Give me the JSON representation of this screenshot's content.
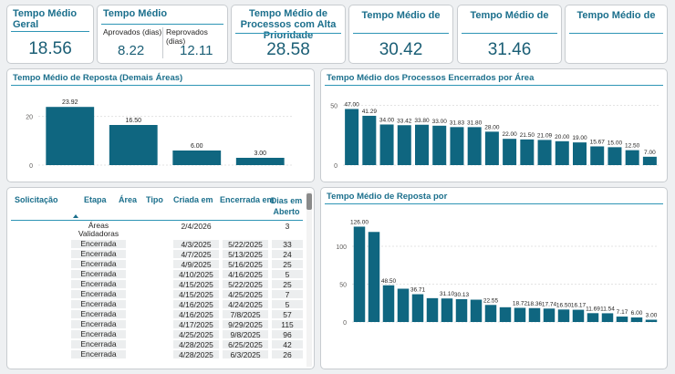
{
  "kpis": {
    "geral": {
      "title": "Tempo Médio Geral",
      "value": "18.56"
    },
    "medio": {
      "title": "Tempo Médio",
      "aprovados_label": "Aprovados (dias)",
      "aprovados_value": "8.22",
      "reprovados_label": "Reprovados (dias)",
      "reprovados_value": "12.11"
    },
    "alta": {
      "title": "Tempo Médio de Processos com Alta Prioridade",
      "value": "28.58"
    },
    "k4": {
      "title": "Tempo Médio de",
      "value": "30.42"
    },
    "k5": {
      "title": "Tempo Médio de",
      "value": "31.46"
    },
    "k6": {
      "title": "Tempo Médio de",
      "value": ""
    }
  },
  "panels": {
    "demais": {
      "title": "Tempo Médio de Reposta (Demais Áreas)"
    },
    "encerrados": {
      "title": "Tempo Médio dos Processos Encerrados por Área"
    },
    "reposta_por": {
      "title": "Tempo Médio de Reposta por"
    }
  },
  "table": {
    "headers": [
      "Solicitação",
      "Etapa",
      "Área",
      "Tipo",
      "Criada em",
      "Encerrada em",
      "Dias em Aberto"
    ],
    "rows": [
      {
        "etapa": "Áreas Validadoras",
        "criada": "2/4/2026",
        "encerrada": "",
        "dias": "3"
      },
      {
        "etapa": "Encerrada",
        "criada": "4/3/2025",
        "encerrada": "5/22/2025",
        "dias": "33"
      },
      {
        "etapa": "Encerrada",
        "criada": "4/7/2025",
        "encerrada": "5/13/2025",
        "dias": "24"
      },
      {
        "etapa": "Encerrada",
        "criada": "4/9/2025",
        "encerrada": "5/16/2025",
        "dias": "25"
      },
      {
        "etapa": "Encerrada",
        "criada": "4/10/2025",
        "encerrada": "4/16/2025",
        "dias": "5"
      },
      {
        "etapa": "Encerrada",
        "criada": "4/15/2025",
        "encerrada": "5/22/2025",
        "dias": "25"
      },
      {
        "etapa": "Encerrada",
        "criada": "4/15/2025",
        "encerrada": "4/25/2025",
        "dias": "7"
      },
      {
        "etapa": "Encerrada",
        "criada": "4/16/2025",
        "encerrada": "4/24/2025",
        "dias": "5"
      },
      {
        "etapa": "Encerrada",
        "criada": "4/16/2025",
        "encerrada": "7/8/2025",
        "dias": "57"
      },
      {
        "etapa": "Encerrada",
        "criada": "4/17/2025",
        "encerrada": "9/29/2025",
        "dias": "115"
      },
      {
        "etapa": "Encerrada",
        "criada": "4/25/2025",
        "encerrada": "9/8/2025",
        "dias": "96"
      },
      {
        "etapa": "Encerrada",
        "criada": "4/28/2025",
        "encerrada": "6/25/2025",
        "dias": "42"
      },
      {
        "etapa": "Encerrada",
        "criada": "4/28/2025",
        "encerrada": "6/3/2025",
        "dias": "26"
      }
    ]
  },
  "colors": {
    "bar": "#0f6680",
    "accent": "#1b6f8c",
    "rule": "#2e95b5"
  },
  "chart_data": [
    {
      "type": "bar",
      "title": "Tempo Médio de Reposta (Demais Áreas)",
      "values": [
        23.92,
        16.5,
        6.0,
        3.0
      ],
      "data_labels": [
        "23.92",
        "16.50",
        "6.00",
        "3.00"
      ],
      "y_ticks": [
        "0",
        "20"
      ],
      "ylim": [
        0,
        27
      ],
      "grid": true
    },
    {
      "type": "bar",
      "title": "Tempo Médio dos Processos Encerrados por Área",
      "values": [
        47.0,
        41.29,
        34.0,
        33.42,
        33.8,
        33.0,
        31.83,
        31.8,
        28.0,
        22.0,
        21.5,
        21.09,
        20.0,
        19.0,
        15.67,
        15.0,
        12.5,
        7.0
      ],
      "data_labels": [
        "47.00",
        "41.29",
        "34.00",
        "33.42",
        "33.80",
        "33.00",
        "31.83",
        "31.80",
        "28.00",
        "22.00",
        "21.50",
        "21.09",
        "20.00",
        "19.00",
        "15.67",
        "15.00",
        "12.50",
        "7.00"
      ],
      "y_ticks": [
        "0",
        "50"
      ],
      "ylim": [
        0,
        55
      ],
      "grid": true
    },
    {
      "type": "bar",
      "title": "Tempo Médio de Reposta por",
      "values": [
        126.0,
        119.0,
        48.5,
        44.0,
        36.71,
        31.5,
        31.1,
        30.13,
        29.5,
        22.55,
        19.5,
        18.72,
        18.36,
        17.74,
        16.5,
        16.17,
        11.69,
        11.54,
        7.17,
        6.0,
        3.0
      ],
      "data_labels": [
        "126.00",
        "",
        "48.50",
        "",
        "36.71",
        "",
        "31.10",
        "30.13",
        "",
        "22.55",
        "",
        "18.72",
        "18.36",
        "17.74",
        "16.50",
        "16.17",
        "11.69",
        "11.54",
        "7.17",
        "6.00",
        "3.00"
      ],
      "y_ticks": [
        "0",
        "50",
        "100"
      ],
      "ylim": [
        0,
        135
      ],
      "grid": true
    }
  ]
}
